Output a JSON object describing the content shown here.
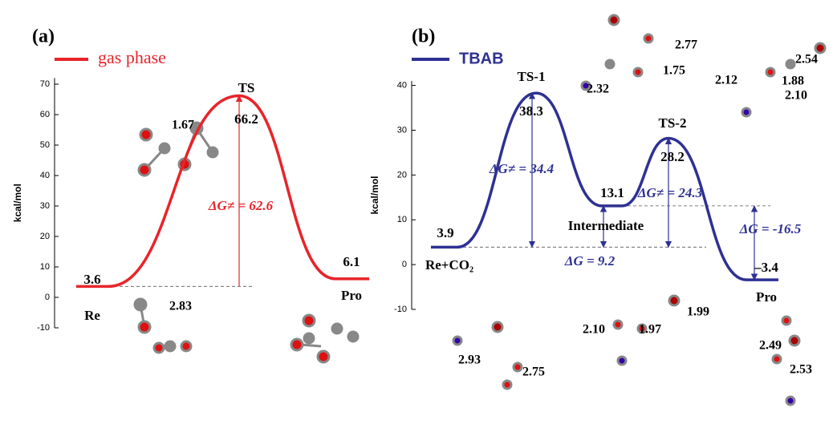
{
  "chart_data": [
    {
      "type": "energy-profile",
      "title": "(a)",
      "ylabel": "kcal/mol",
      "categories": [
        "Re",
        "TS",
        "Pro"
      ],
      "series": [
        {
          "name": "gas phase",
          "color": "#e8242a",
          "values": [
            3.6,
            66.2,
            6.1
          ]
        }
      ],
      "ylim": [
        -10,
        72
      ],
      "yticks": [
        -10,
        0,
        10,
        20,
        30,
        40,
        50,
        60,
        70
      ],
      "annotations": [
        "ΔG≠ = 62.6",
        "1.67",
        "2.83"
      ]
    },
    {
      "type": "energy-profile",
      "title": "(b)",
      "ylabel": "kcal/mol",
      "categories": [
        "Re+CO₂",
        "TS-1",
        "Intermediate",
        "TS-2",
        "Pro"
      ],
      "series": [
        {
          "name": "TBAB",
          "color": "#2e3192",
          "values": [
            3.9,
            38.3,
            13.1,
            28.2,
            -3.4
          ],
          "value_labels": [
            "3.9",
            "38.3",
            "13.1",
            "28.2",
            "–3.4"
          ]
        }
      ],
      "ylim": [
        -10,
        41
      ],
      "yticks": [
        -10,
        0,
        10,
        20,
        30,
        40
      ],
      "annotations": [
        "ΔG≠ = 34.4",
        "ΔG≠ = 24.3",
        "ΔG = 9.2",
        "ΔG = -16.5",
        "2.77",
        "1.75",
        "2.32",
        "2.54",
        "2.12",
        "1.88",
        "2.10",
        "1.99",
        "2.10",
        "1.97",
        "2.93",
        "2.75",
        "2.49",
        "2.53"
      ]
    }
  ]
}
